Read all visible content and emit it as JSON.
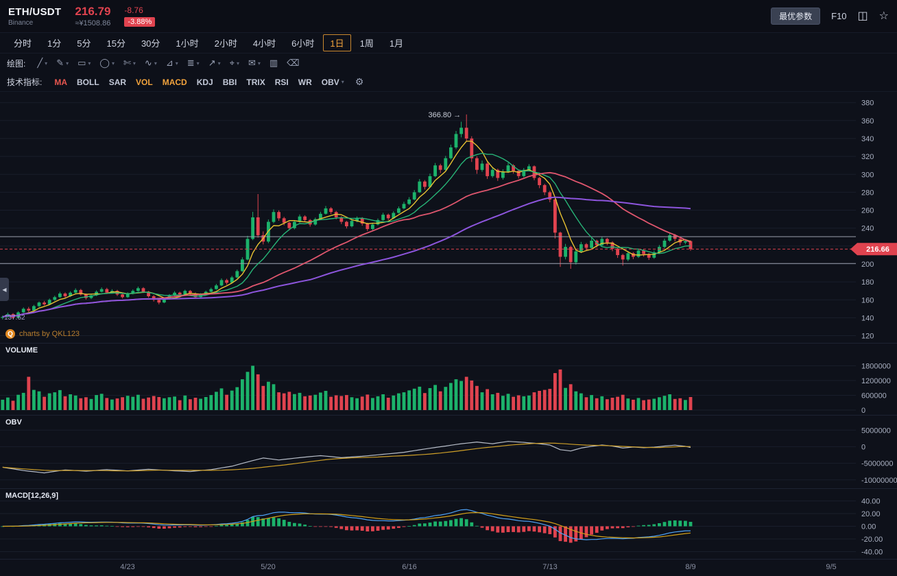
{
  "header": {
    "symbol": "ETH/USDT",
    "exchange": "Binance",
    "price": "216.79",
    "price_cny": "≈¥1508.86",
    "change": "-8.76",
    "change_pct": "-3.88%",
    "optimal_params_button": "最优参数",
    "f10_label": "F10"
  },
  "icons": {
    "screenshot": "◫",
    "favorite_star": "☆",
    "gear": "⚙",
    "caret": "▾",
    "collapse_left": "◀",
    "arrow_right": "→"
  },
  "timeframe_bar": {
    "items": [
      "分时",
      "1分",
      "5分",
      "15分",
      "30分",
      "1小时",
      "2小时",
      "4小时",
      "6小时",
      "1日",
      "1周",
      "1月"
    ],
    "active": "1日"
  },
  "drawing_bar": {
    "label": "绘图:",
    "tools": [
      {
        "name": "trend-line-tool",
        "glyph": "╱",
        "caret": true
      },
      {
        "name": "pencil-tool",
        "glyph": "✎",
        "caret": true
      },
      {
        "name": "rectangle-tool",
        "glyph": "▭",
        "caret": true
      },
      {
        "name": "ellipse-tool",
        "glyph": "◯",
        "caret": true
      },
      {
        "name": "eraser-tool",
        "glyph": "✄",
        "caret": true
      },
      {
        "name": "wave-tool",
        "glyph": "∿",
        "caret": true
      },
      {
        "name": "ruler-tool",
        "glyph": "⊿",
        "caret": true
      },
      {
        "name": "fib-lines-tool",
        "glyph": "≣",
        "caret": true
      },
      {
        "name": "arrow-tool",
        "glyph": "↗",
        "caret": true
      },
      {
        "name": "crosshair-tool",
        "glyph": "⌖",
        "caret": true
      },
      {
        "name": "note-tool",
        "glyph": "✉",
        "caret": true
      },
      {
        "name": "panel-tool",
        "glyph": "▥",
        "caret": false
      },
      {
        "name": "clear-drawings-tool",
        "glyph": "⌫",
        "caret": false
      }
    ]
  },
  "indicator_bar": {
    "label": "技术指标:",
    "items": [
      {
        "label": "MA",
        "active": true,
        "caret": false
      },
      {
        "label": "BOLL",
        "active": false,
        "caret": false
      },
      {
        "label": "SAR",
        "active": false,
        "caret": false
      },
      {
        "label": "VOL",
        "active": true,
        "caret": false
      },
      {
        "label": "MACD",
        "active": true,
        "caret": false
      },
      {
        "label": "KDJ",
        "active": false,
        "caret": false
      },
      {
        "label": "BBI",
        "active": false,
        "caret": false
      },
      {
        "label": "TRIX",
        "active": false,
        "caret": false
      },
      {
        "label": "RSI",
        "active": false,
        "caret": false
      },
      {
        "label": "WR",
        "active": false,
        "caret": false
      },
      {
        "label": "OBV",
        "active": false,
        "caret": true
      }
    ]
  },
  "pane_labels": {
    "volume": "VOLUME",
    "obv": "OBV",
    "macd": "MACD[12,26,9]"
  },
  "watermark": {
    "logo_glyph": "Q",
    "text": "charts by QKL123"
  },
  "chart_data": {
    "type": "candlestick",
    "symbol": "ETH/USDT",
    "interval": "1日",
    "price_axis_ticks": [
      380,
      360,
      340,
      320,
      300,
      280,
      260,
      240,
      220,
      200,
      180,
      160,
      140,
      120
    ],
    "price_ylim": [
      112,
      392
    ],
    "levels": [
      230.5,
      200.5
    ],
    "last_price": 216.66,
    "last_price_label": "216.66",
    "ma60_start_label": "137.62",
    "annotation": {
      "day": 89,
      "price": 366.8,
      "text": "366.80"
    },
    "x_ticks": [
      [
        24,
        "4/23"
      ],
      [
        51,
        "5/20"
      ],
      [
        78,
        "6/16"
      ],
      [
        105,
        "7/13"
      ],
      [
        132,
        "8/9"
      ],
      [
        159,
        "9/5"
      ]
    ],
    "ma_periods": [
      5,
      10,
      30,
      60
    ],
    "volume_axis_ticks": [
      1800000,
      1200000,
      600000,
      0
    ],
    "volume_ymax": 2200000,
    "obv_axis_ticks": [
      5000000,
      0,
      -5000000,
      -10000000
    ],
    "obv_ylim": [
      -11500000,
      6500000
    ],
    "obv_ma_period": 20,
    "macd_params": [
      12,
      26,
      9
    ],
    "macd_axis_ticks": [
      40,
      20,
      0,
      -20,
      -40
    ],
    "macd_ylim": [
      -46,
      46
    ],
    "candles": [
      [
        140,
        142.5,
        138.2,
        141,
        420000
      ],
      [
        141,
        145.8,
        140.1,
        144,
        510000
      ],
      [
        144,
        145.2,
        138.6,
        140,
        380000
      ],
      [
        140,
        147.3,
        139.4,
        146,
        620000
      ],
      [
        146,
        151.6,
        145.2,
        150,
        700000
      ],
      [
        150,
        152.1,
        146.3,
        148,
        1350000
      ],
      [
        148,
        154.4,
        147.1,
        153,
        820000
      ],
      [
        153,
        158.2,
        152.0,
        157,
        760000
      ],
      [
        157,
        158.8,
        153.6,
        155,
        540000
      ],
      [
        155,
        161.4,
        154.2,
        160,
        680000
      ],
      [
        160,
        164.6,
        158.8,
        163,
        720000
      ],
      [
        163,
        168.9,
        162.1,
        167,
        810000
      ],
      [
        167,
        168.3,
        162.4,
        164,
        560000
      ],
      [
        164,
        169.5,
        163.0,
        168,
        640000
      ],
      [
        168,
        172.8,
        166.9,
        171,
        590000
      ],
      [
        171,
        172.2,
        164.7,
        166,
        480000
      ],
      [
        166,
        167.1,
        160.3,
        162,
        520000
      ],
      [
        162,
        166.4,
        160.9,
        165,
        450000
      ],
      [
        165,
        170.6,
        164.1,
        169,
        610000
      ],
      [
        169,
        173.9,
        168.2,
        172,
        660000
      ],
      [
        172,
        173.4,
        166.5,
        168,
        490000
      ],
      [
        168,
        171.8,
        166.9,
        170,
        430000
      ],
      [
        170,
        171.2,
        164.3,
        166,
        470000
      ],
      [
        166,
        167.0,
        161.5,
        163,
        520000
      ],
      [
        163,
        168.4,
        162.2,
        167,
        580000
      ],
      [
        167,
        171.6,
        166.0,
        170,
        540000
      ],
      [
        170,
        174.8,
        169.1,
        173,
        620000
      ],
      [
        173,
        174.2,
        167.6,
        169,
        460000
      ],
      [
        169,
        169.9,
        162.4,
        164,
        510000
      ],
      [
        164,
        165.3,
        158.1,
        160,
        570000
      ],
      [
        160,
        161.2,
        155.0,
        157,
        530000
      ],
      [
        157,
        162.5,
        156.2,
        161,
        480000
      ],
      [
        161,
        166.4,
        160.3,
        165,
        520000
      ],
      [
        165,
        169.7,
        164.0,
        168,
        550000
      ],
      [
        168,
        169.1,
        164.4,
        166,
        400000
      ],
      [
        166,
        171.3,
        165.2,
        170,
        590000
      ],
      [
        170,
        171.0,
        165.5,
        167,
        440000
      ],
      [
        167,
        168.2,
        161.6,
        163,
        500000
      ],
      [
        163,
        167.5,
        162.1,
        166,
        460000
      ],
      [
        166,
        170.4,
        165.3,
        169,
        530000
      ],
      [
        169,
        173.6,
        168.0,
        172,
        610000
      ],
      [
        172,
        177.8,
        171.2,
        176,
        740000
      ],
      [
        176,
        183.9,
        175.1,
        182,
        880000
      ],
      [
        182,
        183.5,
        176.8,
        179,
        620000
      ],
      [
        179,
        186.7,
        178.2,
        185,
        790000
      ],
      [
        185,
        193.8,
        184.0,
        192,
        930000
      ],
      [
        192,
        207.5,
        191.2,
        205,
        1250000
      ],
      [
        205,
        231.4,
        204.1,
        228,
        1550000
      ],
      [
        228,
        258.2,
        226.5,
        252,
        1800000
      ],
      [
        252,
        278.0,
        229.3,
        232,
        1450000
      ],
      [
        232,
        236.4,
        221.8,
        225,
        980000
      ],
      [
        225,
        249.6,
        223.2,
        247,
        1150000
      ],
      [
        247,
        260.9,
        245.5,
        258,
        1050000
      ],
      [
        258,
        259.8,
        248.2,
        251,
        720000
      ],
      [
        251,
        252.6,
        243.1,
        246,
        680000
      ],
      [
        246,
        247.3,
        237.4,
        240,
        740000
      ],
      [
        240,
        248.9,
        238.6,
        247,
        650000
      ],
      [
        247,
        255.2,
        246.0,
        253,
        700000
      ],
      [
        253,
        254.4,
        246.8,
        249,
        560000
      ],
      [
        249,
        250.1,
        241.7,
        244,
        590000
      ],
      [
        244,
        251.8,
        242.9,
        250,
        620000
      ],
      [
        250,
        258.3,
        249.2,
        256,
        710000
      ],
      [
        256,
        264.7,
        255.1,
        262,
        780000
      ],
      [
        262,
        263.5,
        255.6,
        258,
        540000
      ],
      [
        258,
        259.2,
        249.8,
        252,
        600000
      ],
      [
        252,
        253.4,
        244.5,
        247,
        570000
      ],
      [
        247,
        248.1,
        239.6,
        242,
        610000
      ],
      [
        242,
        249.9,
        240.8,
        248,
        520000
      ],
      [
        248,
        253.0,
        246.4,
        251,
        480000
      ],
      [
        251,
        252.2,
        242.7,
        245,
        550000
      ],
      [
        245,
        246.0,
        236.8,
        239,
        630000
      ],
      [
        239,
        245.7,
        237.5,
        244,
        490000
      ],
      [
        244,
        250.8,
        243.0,
        249,
        560000
      ],
      [
        249,
        257.1,
        248.2,
        255,
        640000
      ],
      [
        255,
        256.3,
        248.9,
        251,
        500000
      ],
      [
        251,
        258.9,
        250.0,
        257,
        590000
      ],
      [
        257,
        264.2,
        256.1,
        262,
        680000
      ],
      [
        262,
        269.4,
        261.0,
        267,
        720000
      ],
      [
        267,
        274.6,
        265.8,
        272,
        800000
      ],
      [
        272,
        282.5,
        271.0,
        280,
        870000
      ],
      [
        280,
        294.8,
        279.2,
        292,
        950000
      ],
      [
        292,
        293.6,
        283.1,
        286,
        690000
      ],
      [
        286,
        300.9,
        285.0,
        298,
        890000
      ],
      [
        298,
        312.7,
        296.8,
        310,
        1020000
      ],
      [
        310,
        311.8,
        301.4,
        305,
        760000
      ],
      [
        305,
        320.6,
        303.9,
        318,
        940000
      ],
      [
        318,
        333.2,
        316.5,
        330,
        1100000
      ],
      [
        330,
        348.4,
        328.1,
        345,
        1250000
      ],
      [
        345,
        358.7,
        341.2,
        352,
        1180000
      ],
      [
        352,
        366.8,
        336.4,
        340,
        1350000
      ],
      [
        340,
        342.5,
        313.8,
        318,
        1200000
      ],
      [
        318,
        320.2,
        300.6,
        305,
        980000
      ],
      [
        305,
        315.4,
        302.8,
        312,
        720000
      ],
      [
        312,
        313.6,
        294.9,
        298,
        850000
      ],
      [
        298,
        307.8,
        296.2,
        305,
        640000
      ],
      [
        305,
        306.4,
        292.7,
        296,
        700000
      ],
      [
        296,
        305.6,
        294.1,
        303,
        580000
      ],
      [
        303,
        312.9,
        301.5,
        310,
        660000
      ],
      [
        310,
        311.3,
        300.8,
        304,
        540000
      ],
      [
        304,
        305.2,
        295.4,
        298,
        600000
      ],
      [
        298,
        307.1,
        296.6,
        305,
        560000
      ],
      [
        305,
        311.4,
        303.2,
        309,
        590000
      ],
      [
        309,
        310.0,
        293.5,
        296,
        720000
      ],
      [
        296,
        297.2,
        284.6,
        288,
        780000
      ],
      [
        288,
        289.4,
        276.8,
        280,
        820000
      ],
      [
        280,
        281.6,
        268.9,
        272,
        860000
      ],
      [
        272,
        273.0,
        228.4,
        235,
        1500000
      ],
      [
        235,
        236.2,
        196.8,
        208,
        1650000
      ],
      [
        208,
        222.4,
        205.1,
        219,
        900000
      ],
      [
        219,
        220.3,
        194.6,
        202,
        1050000
      ],
      [
        202,
        216.8,
        199.4,
        214,
        760000
      ],
      [
        214,
        224.6,
        212.2,
        222,
        680000
      ],
      [
        222,
        223.4,
        214.9,
        218,
        520000
      ],
      [
        218,
        228.7,
        216.5,
        226,
        610000
      ],
      [
        226,
        227.2,
        218.3,
        221,
        480000
      ],
      [
        221,
        230.4,
        219.8,
        228,
        560000
      ],
      [
        228,
        229.1,
        221.0,
        224,
        440000
      ],
      [
        224,
        225.3,
        214.2,
        217,
        500000
      ],
      [
        217,
        218.0,
        206.8,
        210,
        540000
      ],
      [
        210,
        211.4,
        198.2,
        205,
        620000
      ],
      [
        205,
        214.3,
        203.1,
        212,
        470000
      ],
      [
        212,
        213.2,
        205.4,
        208,
        420000
      ],
      [
        208,
        217.1,
        206.6,
        215,
        490000
      ],
      [
        215,
        216.4,
        208.2,
        211,
        400000
      ],
      [
        211,
        212.3,
        204.5,
        207,
        430000
      ],
      [
        207,
        215.0,
        205.8,
        213,
        460000
      ],
      [
        213,
        221.2,
        211.9,
        219,
        520000
      ],
      [
        219,
        228.3,
        217.6,
        226,
        580000
      ],
      [
        226,
        234.6,
        224.8,
        232,
        640000
      ],
      [
        232,
        233.4,
        225.2,
        228,
        450000
      ],
      [
        228,
        229.0,
        220.7,
        224,
        480000
      ],
      [
        224,
        227.8,
        221.9,
        225.5,
        410000
      ],
      [
        225.5,
        226.4,
        214.8,
        216.66,
        530000
      ]
    ],
    "obv_anchors": [
      [
        0,
        -6200000
      ],
      [
        4,
        -7200000
      ],
      [
        8,
        -7900000
      ],
      [
        12,
        -7000000
      ],
      [
        16,
        -7400000
      ],
      [
        20,
        -6900000
      ],
      [
        24,
        -7300000
      ],
      [
        28,
        -6800000
      ],
      [
        32,
        -7200000
      ],
      [
        36,
        -7500000
      ],
      [
        40,
        -6900000
      ],
      [
        44,
        -5900000
      ],
      [
        47,
        -4600000
      ],
      [
        50,
        -3400000
      ],
      [
        53,
        -4000000
      ],
      [
        57,
        -3300000
      ],
      [
        61,
        -2700000
      ],
      [
        65,
        -3300000
      ],
      [
        69,
        -2900000
      ],
      [
        73,
        -2300000
      ],
      [
        77,
        -1700000
      ],
      [
        81,
        -700000
      ],
      [
        85,
        200000
      ],
      [
        88,
        900000
      ],
      [
        91,
        1400000
      ],
      [
        94,
        900000
      ],
      [
        97,
        1600000
      ],
      [
        100,
        1300000
      ],
      [
        103,
        900000
      ],
      [
        105,
        500000
      ],
      [
        107,
        -900000
      ],
      [
        109,
        -1300000
      ],
      [
        111,
        -400000
      ],
      [
        113,
        100000
      ],
      [
        115,
        500000
      ],
      [
        117,
        200000
      ],
      [
        119,
        -400000
      ],
      [
        121,
        -100000
      ],
      [
        123,
        -300000
      ],
      [
        125,
        -150000
      ],
      [
        127,
        200000
      ],
      [
        129,
        450000
      ],
      [
        131,
        100000
      ],
      [
        132,
        -250000
      ]
    ]
  },
  "colors": {
    "up": "#1cb26b",
    "down": "#e0434f",
    "ma5": "#e8c232",
    "ma10": "#27b477",
    "ma30": "#e0566e",
    "ma60": "#8d55dd",
    "obv_line": "#b9bfca",
    "obv_ma": "#cfa028",
    "macd_dif": "#4fa3f7",
    "macd_dea": "#d4a017",
    "level_line": "#9aa0ae",
    "accent": "#f0a23c",
    "grid": "#191e2b",
    "axis_text": "#aab1c2"
  }
}
